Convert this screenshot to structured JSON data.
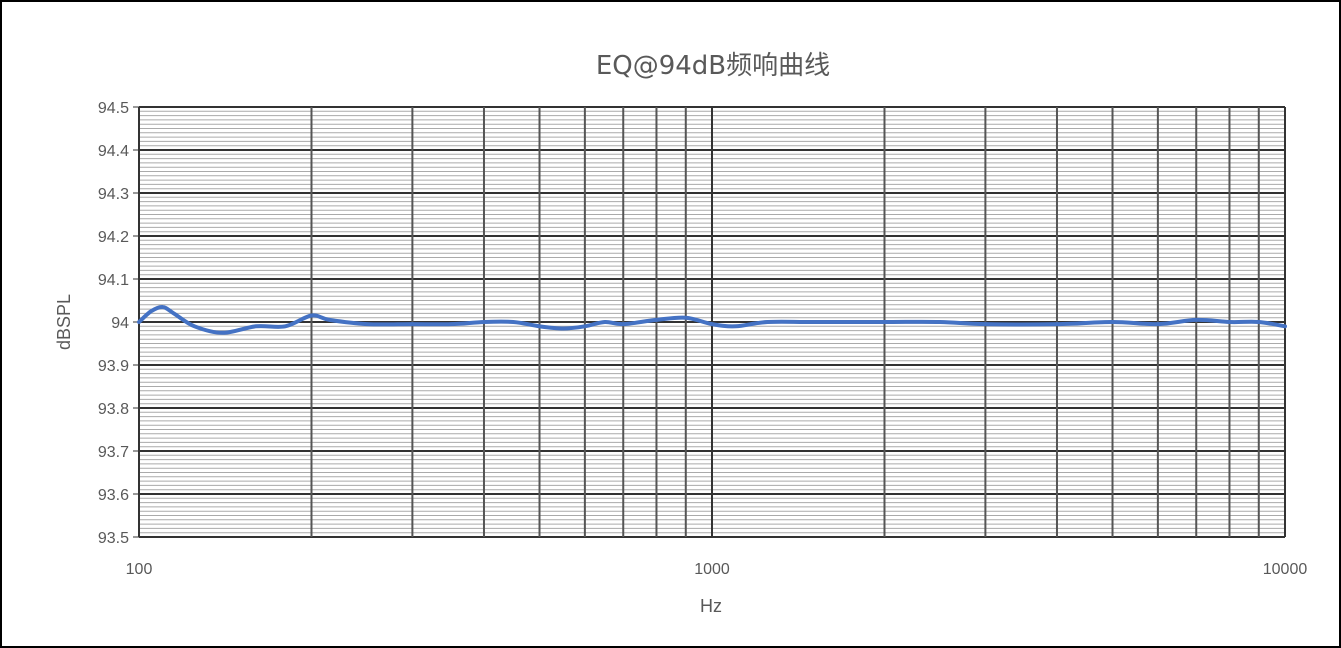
{
  "chart_data": {
    "type": "line",
    "title": "EQ@94dB频响曲线",
    "xlabel": "Hz",
    "ylabel": "dBSPL",
    "x_scale": "log",
    "xlim": [
      100,
      10000
    ],
    "ylim": [
      93.5,
      94.5
    ],
    "x_ticks": [
      "100",
      "1000",
      "10000"
    ],
    "y_ticks": [
      "94.5",
      "94.4",
      "94.3",
      "94.2",
      "94.1",
      "94",
      "93.9",
      "93.8",
      "93.7",
      "93.6",
      "93.5"
    ],
    "grid": true,
    "legend": "none",
    "series": [
      {
        "color": "#4472C4",
        "x": [
          100,
          105,
          110,
          115,
          125,
          140,
          160,
          180,
          200,
          215,
          250,
          300,
          350,
          400,
          450,
          500,
          550,
          600,
          650,
          700,
          800,
          900,
          1000,
          1100,
          1250,
          1500,
          2000,
          2500,
          3000,
          4000,
          5000,
          6000,
          7000,
          8000,
          9000,
          10000
        ],
        "y": [
          94.0,
          94.025,
          94.035,
          94.02,
          93.99,
          93.975,
          93.99,
          93.99,
          94.015,
          94.005,
          93.995,
          93.995,
          93.995,
          94.0,
          94.0,
          93.99,
          93.985,
          93.99,
          94.0,
          93.995,
          94.005,
          94.01,
          93.995,
          93.99,
          94.0,
          94.0,
          94.0,
          94.0,
          93.995,
          93.995,
          94.0,
          93.995,
          94.005,
          94.0,
          94.0,
          93.99
        ]
      }
    ]
  }
}
